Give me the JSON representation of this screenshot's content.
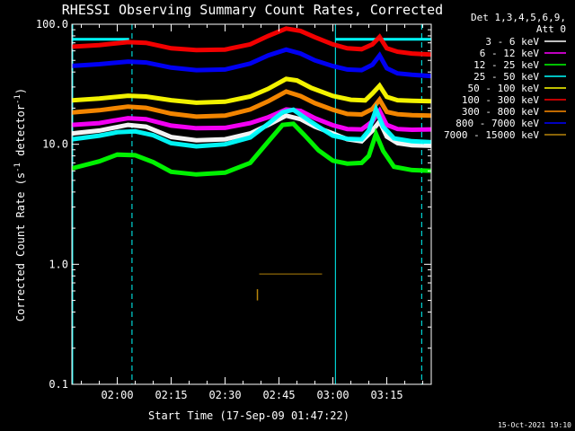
{
  "chart_data": {
    "type": "line",
    "title": "RHESSI Observing Summary Count Rates, Corrected",
    "xlabel": "Start Time (17-Sep-09 01:47:22)",
    "ylabel_main": "Corrected Count Rate (s",
    "ylabel_sup1": "-1",
    "ylabel_mid": " detector",
    "ylabel_sup2": "-1",
    "ylabel_end": ")",
    "y_scale": "log",
    "ylim": [
      0.1,
      100
    ],
    "xlim_minutes": [
      107.37,
      207.37
    ],
    "x_ticks": [
      {
        "label": "02:00",
        "minutes": 120
      },
      {
        "label": "02:15",
        "minutes": 135
      },
      {
        "label": "02:30",
        "minutes": 150
      },
      {
        "label": "02:45",
        "minutes": 165
      },
      {
        "label": "03:00",
        "minutes": 180
      },
      {
        "label": "03:15",
        "minutes": 195
      }
    ],
    "y_ticks": [
      {
        "label": "100.0",
        "value": 100
      },
      {
        "label": "10.0",
        "value": 10
      },
      {
        "label": "1.0",
        "value": 1
      },
      {
        "label": "0.1",
        "value": 0.1
      }
    ],
    "legend_header": [
      "Det 1,3,4,5,6,9,",
      "Att 0"
    ],
    "legend_position": "right",
    "footer_stamp": "15-Oct-2021 19:10",
    "night_markers_solid_minutes": [
      107.6,
      180.7
    ],
    "night_markers_dashed_minutes": [
      124.1,
      204.7
    ],
    "saa_bar": {
      "start_minutes": [
        107.6,
        180.7
      ],
      "end_minutes": [
        123.3,
        207.4
      ],
      "value": 75
    },
    "series": [
      {
        "name": "3 - 6 keV",
        "color": "#000000",
        "points": [
          [
            107.4,
            12.3
          ],
          [
            115,
            13
          ],
          [
            123,
            14.5
          ],
          [
            128,
            14
          ],
          [
            135,
            11.5
          ],
          [
            142,
            10.8
          ],
          [
            150,
            11
          ],
          [
            157,
            12.3
          ],
          [
            162,
            14.5
          ],
          [
            167,
            17.3
          ],
          [
            171,
            16.2
          ],
          [
            175,
            14
          ],
          [
            180,
            12.3
          ],
          [
            184,
            11
          ],
          [
            188,
            10.6
          ],
          [
            191,
            13
          ],
          [
            193,
            15.5
          ],
          [
            195,
            11.6
          ],
          [
            198,
            10.2
          ],
          [
            202,
            9.8
          ],
          [
            207.4,
            9.7
          ]
        ]
      },
      {
        "name": "6 - 12 keV",
        "color": "#ff00ff",
        "points": [
          [
            107.4,
            14.5
          ],
          [
            115,
            15
          ],
          [
            123,
            16.5
          ],
          [
            128,
            16.2
          ],
          [
            135,
            14.3
          ],
          [
            142,
            13.6
          ],
          [
            150,
            13.7
          ],
          [
            157,
            15
          ],
          [
            162,
            16.8
          ],
          [
            167,
            19.5
          ],
          [
            171,
            19
          ],
          [
            175,
            16.5
          ],
          [
            180,
            14.4
          ],
          [
            184,
            13.4
          ],
          [
            188,
            13.3
          ],
          [
            191,
            15.5
          ],
          [
            193,
            19
          ],
          [
            195,
            14.5
          ],
          [
            198,
            13.4
          ],
          [
            202,
            13.2
          ],
          [
            207.4,
            13.3
          ]
        ]
      },
      {
        "name": "12 - 25 keV",
        "color": "#00ff00",
        "points": [
          [
            107.4,
            6.3
          ],
          [
            115,
            7.2
          ],
          [
            120,
            8.2
          ],
          [
            125,
            8.1
          ],
          [
            130,
            7.1
          ],
          [
            135,
            5.9
          ],
          [
            142,
            5.6
          ],
          [
            150,
            5.8
          ],
          [
            157,
            7
          ],
          [
            162,
            10.5
          ],
          [
            166,
            14.5
          ],
          [
            169,
            14.8
          ],
          [
            172,
            12
          ],
          [
            176,
            8.9
          ],
          [
            180,
            7.3
          ],
          [
            184,
            6.9
          ],
          [
            188,
            7
          ],
          [
            190,
            8
          ],
          [
            192,
            12.2
          ],
          [
            194,
            8.8
          ],
          [
            197,
            6.5
          ],
          [
            202,
            6.1
          ],
          [
            207.4,
            6
          ]
        ]
      },
      {
        "name": "25 - 50 keV",
        "color": "#00ffff",
        "points": [
          [
            107.4,
            11
          ],
          [
            115,
            11.8
          ],
          [
            120,
            12.6
          ],
          [
            125,
            12.8
          ],
          [
            130,
            11.9
          ],
          [
            135,
            10.2
          ],
          [
            142,
            9.6
          ],
          [
            150,
            10
          ],
          [
            157,
            11.4
          ],
          [
            162,
            14.8
          ],
          [
            166,
            18.5
          ],
          [
            169,
            19.4
          ],
          [
            172,
            16.8
          ],
          [
            176,
            14
          ],
          [
            180,
            11.8
          ],
          [
            184,
            11.1
          ],
          [
            188,
            11
          ],
          [
            190,
            13
          ],
          [
            192,
            19.5
          ],
          [
            194,
            14
          ],
          [
            197,
            11.2
          ],
          [
            202,
            10.6
          ],
          [
            207.4,
            10.4
          ]
        ]
      },
      {
        "name": "50 - 100 keV",
        "color": "#ffff00",
        "points": [
          [
            107.4,
            23.2
          ],
          [
            115,
            24
          ],
          [
            123,
            25.4
          ],
          [
            128,
            25
          ],
          [
            135,
            23.3
          ],
          [
            142,
            22.2
          ],
          [
            150,
            22.6
          ],
          [
            157,
            25
          ],
          [
            162,
            29
          ],
          [
            167,
            35
          ],
          [
            170,
            34
          ],
          [
            174,
            29.5
          ],
          [
            180,
            25.3
          ],
          [
            185,
            23.5
          ],
          [
            189,
            23.2
          ],
          [
            191,
            26.5
          ],
          [
            193,
            30.8
          ],
          [
            195,
            24.8
          ],
          [
            198,
            23.3
          ],
          [
            202,
            23
          ],
          [
            207.4,
            22.8
          ]
        ]
      },
      {
        "name": "100 - 300 keV",
        "color": "#ff0000",
        "points": [
          [
            107.4,
            65
          ],
          [
            115,
            67
          ],
          [
            123,
            71
          ],
          [
            128,
            70
          ],
          [
            135,
            63
          ],
          [
            142,
            61
          ],
          [
            150,
            61.5
          ],
          [
            157,
            68
          ],
          [
            162,
            80
          ],
          [
            167,
            92
          ],
          [
            171,
            88
          ],
          [
            175,
            78
          ],
          [
            180,
            68
          ],
          [
            184,
            63
          ],
          [
            188,
            62
          ],
          [
            191,
            68
          ],
          [
            193,
            78.5
          ],
          [
            195,
            63
          ],
          [
            198,
            59
          ],
          [
            202,
            57
          ],
          [
            207.4,
            56
          ]
        ]
      },
      {
        "name": "300 - 800 keV",
        "color": "#ff8c00",
        "points": [
          [
            107.4,
            18.4
          ],
          [
            115,
            19.2
          ],
          [
            123,
            20.6
          ],
          [
            128,
            20.1
          ],
          [
            135,
            18
          ],
          [
            142,
            17
          ],
          [
            150,
            17.3
          ],
          [
            157,
            19.5
          ],
          [
            162,
            22.8
          ],
          [
            167,
            27.5
          ],
          [
            171,
            25.2
          ],
          [
            175,
            22
          ],
          [
            180,
            19.4
          ],
          [
            184,
            17.9
          ],
          [
            188,
            17.7
          ],
          [
            191,
            19.7
          ],
          [
            193,
            23.5
          ],
          [
            195,
            18.6
          ],
          [
            198,
            17.8
          ],
          [
            202,
            17.5
          ],
          [
            207.4,
            17.3
          ]
        ]
      },
      {
        "name": "800 - 7000 keV",
        "color": "#ff8c00",
        "points": [
          [
            107.4,
            45
          ],
          [
            115,
            46.5
          ],
          [
            123,
            48.8
          ],
          [
            128,
            48
          ],
          [
            135,
            43.5
          ],
          [
            142,
            41.5
          ],
          [
            150,
            42
          ],
          [
            157,
            47
          ],
          [
            162,
            55
          ],
          [
            167,
            61.5
          ],
          [
            171,
            57
          ],
          [
            175,
            50
          ],
          [
            180,
            44.8
          ],
          [
            184,
            42
          ],
          [
            188,
            41.5
          ],
          [
            191,
            46
          ],
          [
            193,
            55
          ],
          [
            195,
            43
          ],
          [
            198,
            39
          ],
          [
            202,
            38
          ],
          [
            207.4,
            37
          ]
        ]
      },
      {
        "name": "7000 - 15000 keV",
        "color": "#b8860b",
        "points": [
          [
            159.5,
            0.83
          ],
          [
            160,
            0.83
          ],
          [
            161,
            0.83
          ],
          [
            162,
            0.83
          ],
          [
            163,
            0.83
          ],
          [
            164,
            0.83
          ],
          [
            165,
            0.83
          ],
          [
            166,
            0.83
          ],
          [
            167,
            0.83
          ],
          [
            168,
            0.83
          ],
          [
            169,
            0.83
          ],
          [
            170,
            0.83
          ],
          [
            171,
            0.83
          ],
          [
            172,
            0.83
          ],
          [
            173,
            0.83
          ],
          [
            174,
            0.83
          ],
          [
            175,
            0.83
          ],
          [
            176,
            0.83
          ],
          [
            177,
            0.83
          ]
        ]
      }
    ],
    "series_display_colors": [
      "#ffffff",
      "#ff00ff",
      "#00ff00",
      "#00ffff",
      "#ffff00",
      "#ff0000",
      "#ff8c00",
      "#0000ff",
      "#b8860b"
    ]
  }
}
